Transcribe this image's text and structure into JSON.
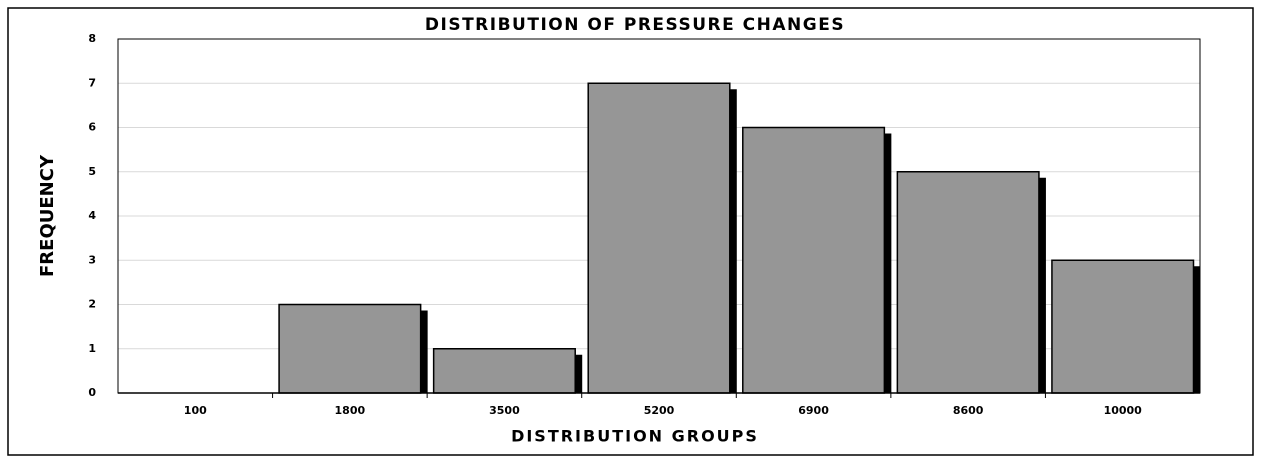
{
  "chart_data": {
    "type": "bar",
    "title": "DISTRIBUTION OF PRESSURE CHANGES",
    "x_label": "DISTRIBUTION GROUPS",
    "y_label": "FREQUENCY",
    "categories": [
      "100",
      "1800",
      "3500",
      "5200",
      "6900",
      "8600",
      "10000"
    ],
    "values": [
      0,
      2,
      1,
      7,
      6,
      5,
      3
    ],
    "color": "#969696",
    "ylim": [
      0,
      8
    ],
    "yticks": [
      0,
      1,
      2,
      3,
      4,
      5,
      6,
      7,
      8
    ],
    "grid": true
  }
}
